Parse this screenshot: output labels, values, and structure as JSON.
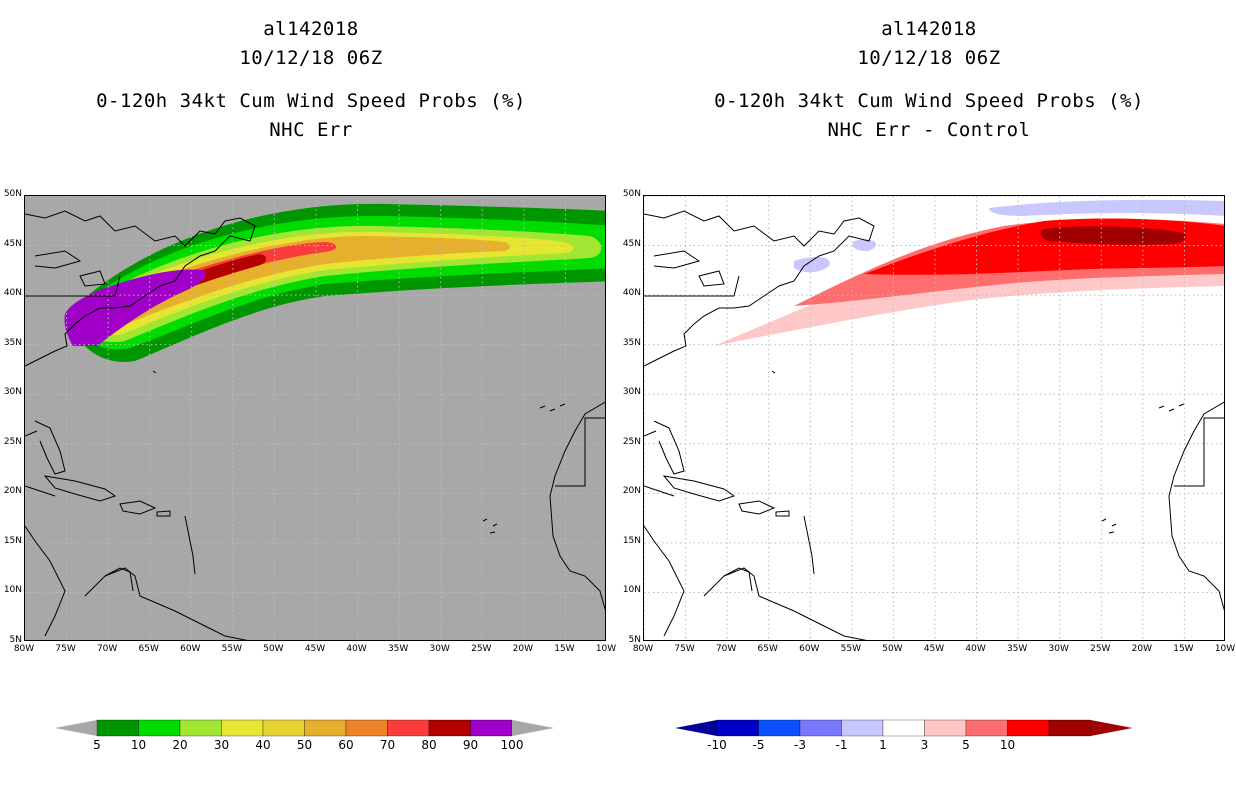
{
  "left": {
    "storm_id": "al142018",
    "datetime": "10/12/18 06Z",
    "product": "0-120h 34kt Cum Wind Speed Probs (%)",
    "subtitle": "NHC Err",
    "background_color": "#a8a8a8",
    "colorbar": {
      "colors": [
        "#009600",
        "#00dc00",
        "#a0e632",
        "#e6e632",
        "#e6d232",
        "#e6af2d",
        "#f08228",
        "#fa3c3c",
        "#b40000",
        "#a000c8"
      ],
      "labels": [
        "5",
        "10",
        "20",
        "30",
        "40",
        "50",
        "60",
        "70",
        "80",
        "90",
        "100"
      ],
      "end_color": "#a8a8a8"
    }
  },
  "right": {
    "storm_id": "al142018",
    "datetime": "10/12/18 06Z",
    "product": "0-120h 34kt Cum Wind Speed Probs (%)",
    "subtitle": "NHC Err - Control",
    "background_color": "#ffffff",
    "colorbar": {
      "colors": [
        "#0000c8",
        "#0a50ff",
        "#7878ff",
        "#c8c8ff",
        "#ffffff",
        "#ffc8c8",
        "#ff6e6e",
        "#ff0000",
        "#a00000"
      ],
      "labels": [
        "-10",
        "-5",
        "-3",
        "-1",
        "1",
        "3",
        "5",
        "10"
      ],
      "low_end_color": "#000096",
      "high_end_color": "#a00000"
    }
  },
  "axes": {
    "lat_labels": [
      "50N",
      "45N",
      "40N",
      "35N",
      "30N",
      "25N",
      "20N",
      "15N",
      "10N",
      "5N"
    ],
    "lon_labels": [
      "80W",
      "75W",
      "70W",
      "65W",
      "60W",
      "55W",
      "50W",
      "45W",
      "40W",
      "35W",
      "30W",
      "25W",
      "20W",
      "15W",
      "10W"
    ],
    "lat_range": [
      5,
      50
    ],
    "lon_range": [
      -80,
      -10
    ]
  }
}
